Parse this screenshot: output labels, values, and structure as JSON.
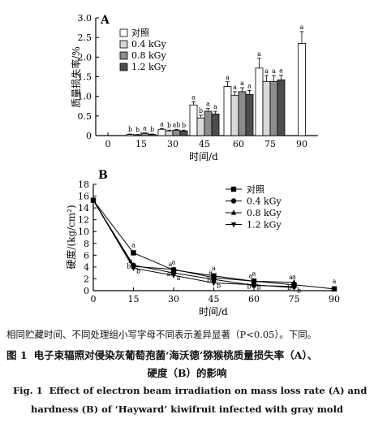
{
  "chart_data": [
    {
      "type": "bar",
      "panel": "A",
      "xlabel": "时间/d",
      "ylabel": "质量损失率/%",
      "categories": [
        0,
        15,
        30,
        45,
        60,
        75,
        90
      ],
      "ylim": [
        0,
        3.0
      ],
      "yticks": [
        "0",
        "0.5",
        "1.0",
        "1.5",
        "2.0",
        "2.5",
        "3.0"
      ],
      "legend_position": "top-left",
      "series": [
        {
          "name": "对照",
          "fill": "#ffffff",
          "values": [
            0,
            0.03,
            0.16,
            0.78,
            1.25,
            1.72,
            2.35
          ],
          "errors": [
            0,
            0.01,
            0.02,
            0.08,
            0.12,
            0.25,
            0.3
          ],
          "letters": [
            "",
            "b",
            "a",
            "a",
            "a",
            "a",
            "a"
          ]
        },
        {
          "name": "0.4 kGy",
          "fill": "#d9d9d9",
          "values": [
            0,
            0.02,
            0.12,
            0.45,
            1.02,
            1.38,
            null
          ],
          "errors": [
            0,
            0.01,
            0.02,
            0.07,
            0.1,
            0.15,
            null
          ],
          "letters": [
            "",
            "b",
            "b",
            "b",
            "a",
            "a",
            ""
          ]
        },
        {
          "name": "0.8 kGy",
          "fill": "#8c8c8c",
          "values": [
            0,
            0.06,
            0.14,
            0.62,
            1.12,
            1.38,
            null
          ],
          "errors": [
            0,
            0.01,
            0.02,
            0.07,
            0.1,
            0.15,
            null
          ],
          "letters": [
            "",
            "a",
            "ab",
            "a",
            "a",
            "a",
            ""
          ]
        },
        {
          "name": "1.2 kGy",
          "fill": "#4d4d4d",
          "values": [
            0,
            0.03,
            0.12,
            0.55,
            1.05,
            1.42,
            null
          ],
          "errors": [
            0,
            0.01,
            0.02,
            0.07,
            0.1,
            0.12,
            null
          ],
          "letters": [
            "",
            "b",
            "b",
            "a",
            "a",
            "a",
            ""
          ]
        }
      ]
    },
    {
      "type": "line",
      "panel": "B",
      "xlabel": "时间/d",
      "ylabel": "硬度/(kg/cm²)",
      "x": [
        0,
        15,
        30,
        45,
        60,
        75,
        90
      ],
      "ylim": [
        0,
        18
      ],
      "yticks": [
        "0",
        "2",
        "4",
        "6",
        "8",
        "10",
        "12",
        "14",
        "16",
        "18"
      ],
      "legend_position": "top-right",
      "series": [
        {
          "name": "对照",
          "marker": "square",
          "values": [
            15.3,
            6.4,
            3.5,
            2.5,
            1.6,
            1.0,
            0.3
          ],
          "letters": [
            "",
            "a",
            "a",
            "a",
            "a",
            "a",
            "a"
          ]
        },
        {
          "name": "0.4 kGy",
          "marker": "circle",
          "values": [
            15.3,
            4.3,
            3.0,
            1.9,
            0.9,
            0.7,
            null
          ],
          "letters": [
            "",
            "b",
            "a",
            "b",
            "b",
            "b",
            ""
          ]
        },
        {
          "name": "0.8 kGy",
          "marker": "triangle-up",
          "values": [
            15.3,
            4.1,
            3.6,
            2.2,
            1.6,
            1.4,
            null
          ],
          "letters": [
            "",
            "b",
            "a",
            "a",
            "a",
            "a",
            ""
          ]
        },
        {
          "name": "1.2 kGy",
          "marker": "triangle-down",
          "values": [
            15.3,
            3.8,
            2.6,
            1.3,
            1.0,
            0.5,
            null
          ],
          "letters": [
            "",
            "b",
            "a",
            "b",
            "b",
            "b",
            ""
          ]
        }
      ]
    }
  ],
  "caption": {
    "note": "相同贮藏时间、不同处理组小写字母不同表示差异显著（P<0.05）。下同。",
    "cn_label": "图 1",
    "cn_line1": "电子束辐照对侵染灰葡萄孢菌‘海沃德’猕猴桃质量损失率（A）、",
    "cn_line2": "硬度（B）的影响",
    "en_label": "Fig. 1",
    "en_line1": "Effect of electron beam irradiation on mass loss rate (A) and",
    "en_line2": "hardness (B) of ‘Hayward’ kiwifruit infected with gray mold"
  }
}
